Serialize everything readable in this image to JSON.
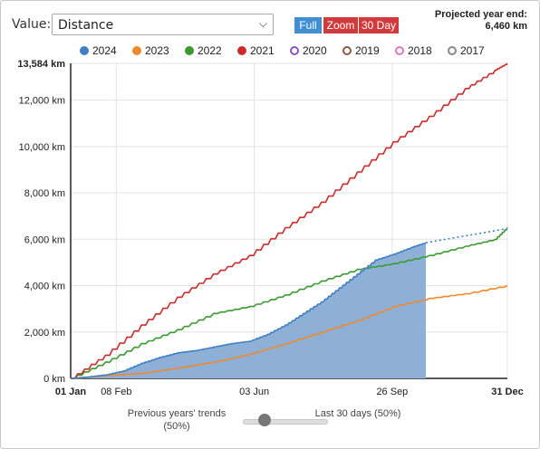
{
  "controls": {
    "value_label": "Value:",
    "value_selected": "Distance",
    "buttons": {
      "full": "Full",
      "zoom": "Zoom",
      "thirty_day": "30 Day"
    },
    "projection_label": "Projected year end:",
    "projection_value": "6,460 km"
  },
  "colors": {
    "2024": "#3f7fc4",
    "2023": "#f0882d",
    "2022": "#3a9a2f",
    "2021": "#cc2b2b",
    "2020": "#8855cc",
    "2019": "#8a5a44",
    "2018": "#e377c2",
    "2017": "#888888",
    "fill_2024": "#8fb0d6",
    "button_active": "#3f8fd2",
    "button_red": "#d23b3b"
  },
  "slider": {
    "left_label": "Previous years' trends (50%)",
    "right_label": "Last 30 days (50%)",
    "position": 0.5
  },
  "chart_data": {
    "type": "line",
    "x_axis_unit": "day of year",
    "x_ticks": [
      {
        "day": 1,
        "label": "01 Jan",
        "bold": true
      },
      {
        "day": 39,
        "label": "08 Feb",
        "bold": false
      },
      {
        "day": 154,
        "label": "03 Jun",
        "bold": false
      },
      {
        "day": 269,
        "label": "26 Sep",
        "bold": false
      },
      {
        "day": 365,
        "label": "31 Dec",
        "bold": true
      }
    ],
    "y_ticks": [
      {
        "value": 0,
        "label": "0 km"
      },
      {
        "value": 2000,
        "label": "2,000 km"
      },
      {
        "value": 4000,
        "label": "4,000 km"
      },
      {
        "value": 6000,
        "label": "6,000 km"
      },
      {
        "value": 8000,
        "label": "8,000 km"
      },
      {
        "value": 10000,
        "label": "10,000 km"
      },
      {
        "value": 12000,
        "label": "12,000 km"
      },
      {
        "value": 13584,
        "label": "13,584 km",
        "bold": true
      }
    ],
    "xlim": [
      1,
      365
    ],
    "ylim": [
      0,
      13584
    ],
    "legend_position": "top",
    "grid": true,
    "series": [
      {
        "name": "2024",
        "style": "area",
        "filled": true,
        "points": [
          [
            1,
            0
          ],
          [
            15,
            60
          ],
          [
            30,
            150
          ],
          [
            45,
            320
          ],
          [
            60,
            650
          ],
          [
            75,
            900
          ],
          [
            90,
            1100
          ],
          [
            105,
            1200
          ],
          [
            120,
            1350
          ],
          [
            135,
            1500
          ],
          [
            150,
            1600
          ],
          [
            165,
            1900
          ],
          [
            180,
            2300
          ],
          [
            195,
            2800
          ],
          [
            210,
            3300
          ],
          [
            225,
            3900
          ],
          [
            240,
            4500
          ],
          [
            255,
            5100
          ],
          [
            270,
            5350
          ],
          [
            285,
            5650
          ],
          [
            297,
            5850
          ]
        ],
        "projection": [
          [
            297,
            5850
          ],
          [
            365,
            6460
          ]
        ]
      },
      {
        "name": "2023",
        "style": "line",
        "filled": true,
        "points": [
          [
            1,
            0
          ],
          [
            30,
            120
          ],
          [
            60,
            220
          ],
          [
            90,
            450
          ],
          [
            120,
            700
          ],
          [
            150,
            1050
          ],
          [
            180,
            1500
          ],
          [
            210,
            2000
          ],
          [
            240,
            2500
          ],
          [
            270,
            3100
          ],
          [
            300,
            3450
          ],
          [
            330,
            3650
          ],
          [
            365,
            4000
          ]
        ]
      },
      {
        "name": "2022",
        "style": "line",
        "filled": true,
        "points": [
          [
            1,
            0
          ],
          [
            30,
            700
          ],
          [
            60,
            1500
          ],
          [
            90,
            2100
          ],
          [
            120,
            2800
          ],
          [
            150,
            3100
          ],
          [
            180,
            3600
          ],
          [
            210,
            4200
          ],
          [
            240,
            4700
          ],
          [
            270,
            4950
          ],
          [
            300,
            5300
          ],
          [
            330,
            5700
          ],
          [
            355,
            6000
          ],
          [
            365,
            6500
          ]
        ]
      },
      {
        "name": "2021",
        "style": "line",
        "filled": true,
        "points": [
          [
            1,
            0
          ],
          [
            30,
            1000
          ],
          [
            60,
            2300
          ],
          [
            90,
            3500
          ],
          [
            120,
            4500
          ],
          [
            150,
            5300
          ],
          [
            180,
            6500
          ],
          [
            210,
            7600
          ],
          [
            240,
            8900
          ],
          [
            270,
            10200
          ],
          [
            300,
            11300
          ],
          [
            330,
            12500
          ],
          [
            355,
            13300
          ],
          [
            365,
            13584
          ]
        ]
      },
      {
        "name": "2020",
        "style": "line",
        "filled": false,
        "points": []
      },
      {
        "name": "2019",
        "style": "line",
        "filled": false,
        "points": []
      },
      {
        "name": "2018",
        "style": "line",
        "filled": false,
        "points": []
      },
      {
        "name": "2017",
        "style": "line",
        "filled": false,
        "points": []
      }
    ]
  }
}
